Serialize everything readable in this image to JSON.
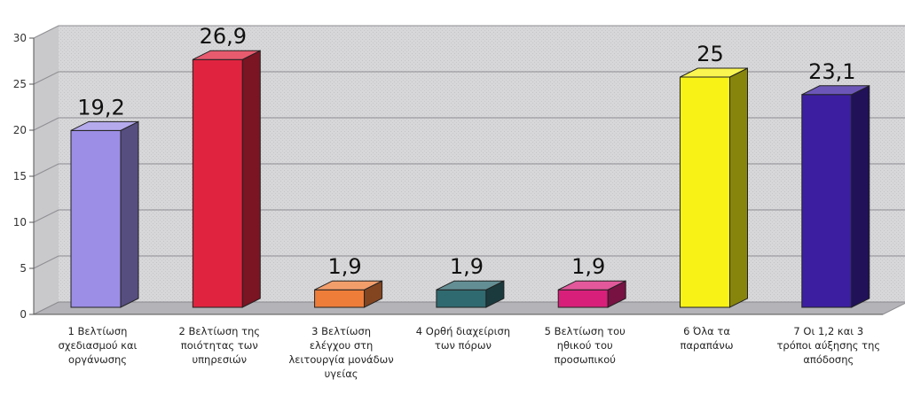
{
  "chart_data": {
    "type": "bar",
    "categories": [
      [
        "1  Βελτίωση",
        "σχεδιασμού και",
        "οργάνωσης"
      ],
      [
        "2  Βελτίωση της",
        "ποιότητας των",
        "υπηρεσιών"
      ],
      [
        "3  Βελτίωση",
        "ελέγχου στη",
        "λειτουργία μονάδων",
        "υγείας"
      ],
      [
        "4  Ορθή διαχείριση",
        "των πόρων"
      ],
      [
        "5  Βελτίωση του",
        "ηθικού του",
        "προσωπικού"
      ],
      [
        "6  Όλα τα",
        "παραπάνω"
      ],
      [
        "7  Οι 1,2 και 3",
        "τρόποι αύξησης της",
        "απόδοσης"
      ]
    ],
    "values": [
      19.2,
      26.9,
      1.9,
      1.9,
      1.9,
      25,
      23.1
    ],
    "data_labels": [
      "19,2",
      "26,9",
      "1,9",
      "1,9",
      "1,9",
      "25",
      "23,1"
    ],
    "colors": [
      "#9c8ee6",
      "#e0243f",
      "#ee7d3a",
      "#2f6a70",
      "#d8207a",
      "#f8f216",
      "#3b1fa0"
    ],
    "y_ticks": [
      "0",
      "5",
      "10",
      "15",
      "20",
      "25",
      "30"
    ],
    "ylim": [
      0,
      30
    ],
    "grid": true,
    "three_d": true,
    "legend": "none",
    "title": "",
    "xlabel": "",
    "ylabel": ""
  }
}
